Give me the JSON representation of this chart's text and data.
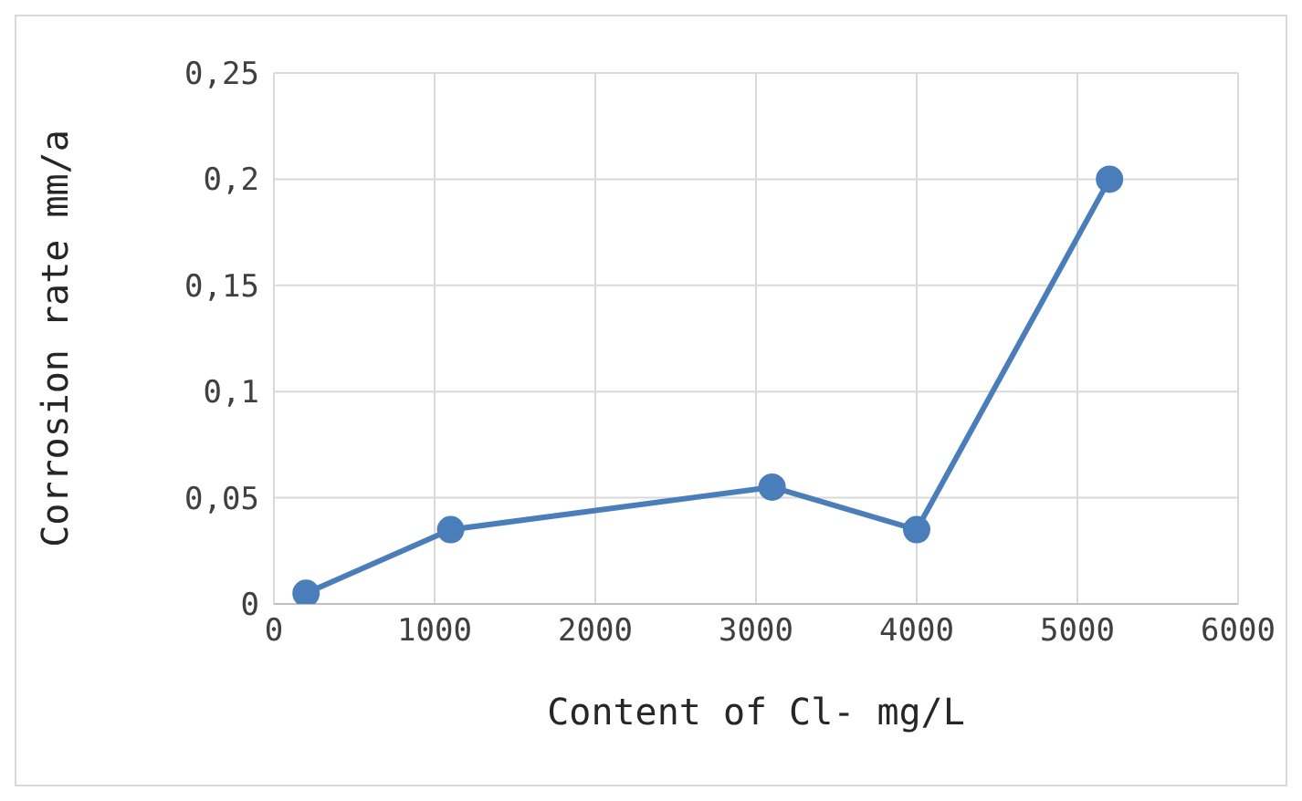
{
  "chart_data": {
    "type": "line",
    "xlabel": "Content of Cl- mg/L",
    "ylabel": "Corrosion rate mm/a",
    "x": [
      200,
      1100,
      3100,
      4000,
      5200
    ],
    "series": [
      {
        "color": "#4a7ebb",
        "values": [
          0.005,
          0.035,
          0.055,
          0.035,
          0.2
        ]
      }
    ],
    "xlim": [
      0,
      6000
    ],
    "xticks": [
      0,
      1000,
      2000,
      3000,
      4000,
      5000,
      6000
    ],
    "ylim": [
      0,
      0.25
    ],
    "yticks": [
      0,
      {
        "value": 0.05,
        "label": "0,05"
      },
      {
        "value": 0.1,
        "label": "0,1"
      },
      {
        "value": 0.15,
        "label": "0,15"
      },
      {
        "value": 0.2,
        "label": "0,2"
      },
      {
        "value": 0.25,
        "label": "0,25"
      }
    ],
    "grid": true,
    "marker": "circle",
    "line_style": "solid"
  }
}
